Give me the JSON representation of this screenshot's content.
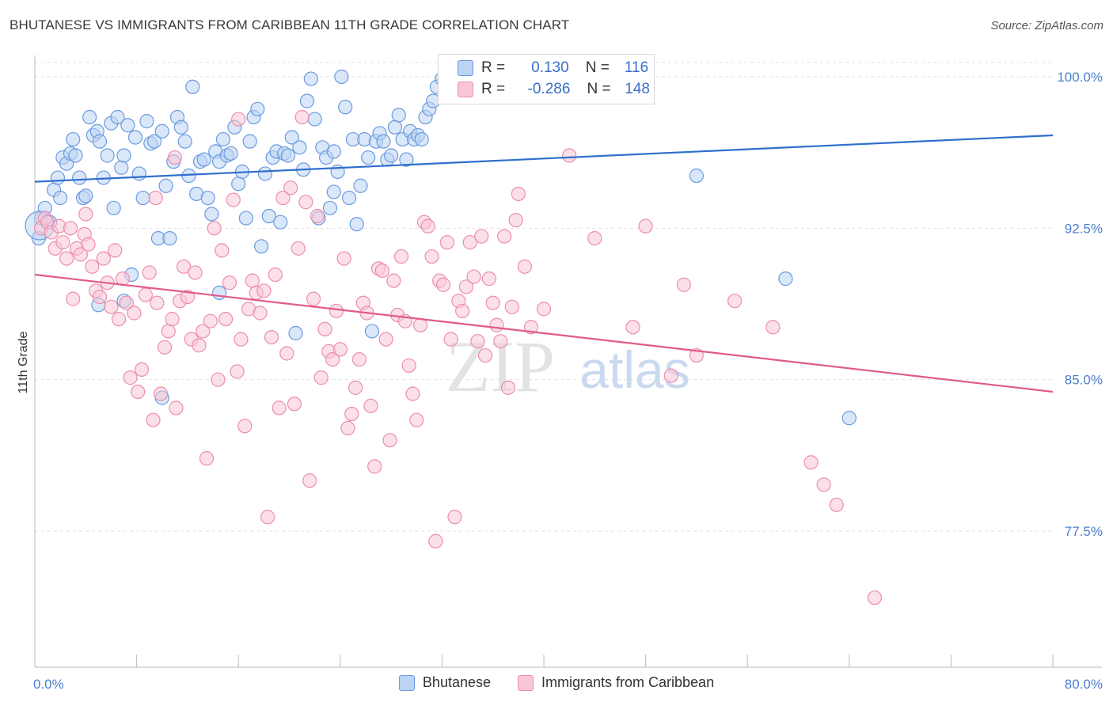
{
  "title": "BHUTANESE VS IMMIGRANTS FROM CARIBBEAN 11TH GRADE CORRELATION CHART",
  "source": "Source: ZipAtlas.com",
  "watermark": {
    "zip": "ZIP",
    "atlas": "atlas"
  },
  "legend_box": {
    "rows": [
      {
        "r_label": "R =",
        "r_value": "0.130",
        "n_label": "N =",
        "n_value": "116"
      },
      {
        "r_label": "R =",
        "r_value": "-0.286",
        "n_label": "N =",
        "n_value": "148"
      }
    ]
  },
  "colors": {
    "blue_fill": "#bcd3f4",
    "blue_stroke": "#6a9be0",
    "blue_line": "#2f6fcc",
    "pink_fill": "#f9c6d6",
    "pink_stroke": "#eb8eaf",
    "pink_line": "#e05a8c",
    "tick_label": "#4a7fd0"
  },
  "chart_data": {
    "type": "scatter",
    "xlabel": "",
    "ylabel": "11th Grade",
    "xlim": [
      0,
      80
    ],
    "ylim": [
      72,
      101.5
    ],
    "x_tick_labels": [
      {
        "value": 0,
        "label": "0.0%"
      },
      {
        "value": 80,
        "label": "80.0%"
      }
    ],
    "y_tick_labels": [
      {
        "value": 100,
        "label": "100.0%"
      },
      {
        "value": 92.5,
        "label": "92.5%"
      },
      {
        "value": 85,
        "label": "85.0%"
      },
      {
        "value": 77.5,
        "label": "77.5%"
      }
    ],
    "grid": "horizontal dashed",
    "legend_position": "bottom",
    "series": [
      {
        "name": "Bhutanese",
        "trend": {
          "x": [
            0,
            80
          ],
          "y": [
            94.8,
            97.1
          ]
        },
        "points": [
          [
            0.5,
            93.0
          ],
          [
            0.8,
            93.5
          ],
          [
            1.2,
            92.8
          ],
          [
            1.5,
            94.4
          ],
          [
            1.8,
            95.0
          ],
          [
            2.0,
            94.0
          ],
          [
            2.2,
            96.0
          ],
          [
            2.5,
            95.7
          ],
          [
            2.8,
            96.2
          ],
          [
            3.0,
            96.9
          ],
          [
            3.2,
            96.1
          ],
          [
            3.5,
            95.0
          ],
          [
            3.8,
            94.0
          ],
          [
            4.0,
            94.1
          ],
          [
            4.3,
            98.0
          ],
          [
            4.6,
            97.1
          ],
          [
            4.9,
            97.3
          ],
          [
            5.1,
            96.8
          ],
          [
            5.4,
            95.0
          ],
          [
            5.7,
            96.1
          ],
          [
            6.0,
            97.7
          ],
          [
            6.2,
            93.5
          ],
          [
            6.5,
            98.0
          ],
          [
            6.8,
            95.5
          ],
          [
            7.0,
            96.1
          ],
          [
            7.3,
            97.6
          ],
          [
            7.6,
            90.2
          ],
          [
            7.9,
            97.0
          ],
          [
            8.2,
            95.2
          ],
          [
            8.5,
            94.0
          ],
          [
            8.8,
            97.8
          ],
          [
            9.1,
            96.7
          ],
          [
            9.4,
            96.8
          ],
          [
            9.7,
            92.0
          ],
          [
            10.0,
            97.3
          ],
          [
            10.3,
            94.6
          ],
          [
            10.6,
            92.0
          ],
          [
            10.9,
            95.8
          ],
          [
            11.2,
            98.0
          ],
          [
            11.5,
            97.5
          ],
          [
            11.8,
            96.8
          ],
          [
            12.1,
            95.1
          ],
          [
            12.4,
            99.5
          ],
          [
            12.7,
            94.2
          ],
          [
            13.0,
            95.8
          ],
          [
            13.3,
            95.9
          ],
          [
            13.6,
            94.0
          ],
          [
            13.9,
            93.2
          ],
          [
            14.2,
            96.3
          ],
          [
            14.5,
            95.8
          ],
          [
            14.8,
            96.9
          ],
          [
            15.1,
            96.1
          ],
          [
            15.4,
            96.2
          ],
          [
            15.7,
            97.5
          ],
          [
            16.0,
            94.7
          ],
          [
            16.3,
            95.3
          ],
          [
            16.6,
            93.0
          ],
          [
            16.9,
            96.8
          ],
          [
            17.2,
            98.0
          ],
          [
            17.5,
            98.4
          ],
          [
            17.8,
            91.6
          ],
          [
            18.1,
            95.2
          ],
          [
            18.4,
            93.1
          ],
          [
            18.7,
            96.0
          ],
          [
            19.0,
            96.3
          ],
          [
            19.3,
            92.8
          ],
          [
            19.6,
            96.2
          ],
          [
            19.9,
            96.1
          ],
          [
            20.2,
            97.0
          ],
          [
            20.5,
            87.3
          ],
          [
            20.8,
            96.5
          ],
          [
            21.1,
            95.4
          ],
          [
            21.4,
            98.8
          ],
          [
            21.7,
            99.9
          ],
          [
            22.0,
            97.9
          ],
          [
            22.3,
            93.0
          ],
          [
            22.6,
            96.5
          ],
          [
            22.9,
            96.0
          ],
          [
            23.2,
            93.5
          ],
          [
            23.5,
            94.3
          ],
          [
            23.8,
            95.3
          ],
          [
            24.1,
            100.0
          ],
          [
            24.4,
            98.5
          ],
          [
            24.7,
            94.0
          ],
          [
            25.0,
            96.9
          ],
          [
            25.3,
            92.7
          ],
          [
            25.6,
            94.6
          ],
          [
            25.9,
            96.9
          ],
          [
            26.2,
            96.0
          ],
          [
            26.5,
            87.4
          ],
          [
            26.8,
            96.8
          ],
          [
            27.1,
            97.2
          ],
          [
            27.4,
            96.8
          ],
          [
            27.7,
            95.9
          ],
          [
            28.0,
            96.1
          ],
          [
            28.3,
            97.5
          ],
          [
            28.6,
            98.1
          ],
          [
            28.9,
            96.9
          ],
          [
            29.2,
            95.9
          ],
          [
            29.5,
            97.3
          ],
          [
            29.8,
            96.9
          ],
          [
            30.1,
            97.1
          ],
          [
            30.4,
            96.9
          ],
          [
            30.7,
            98.0
          ],
          [
            31.0,
            98.4
          ],
          [
            31.3,
            98.8
          ],
          [
            31.6,
            99.5
          ],
          [
            32.0,
            99.9
          ],
          [
            32.5,
            100.0
          ],
          [
            33.0,
            99.8
          ],
          [
            34.0,
            100.0
          ],
          [
            35.0,
            99.9
          ],
          [
            0.3,
            92.0
          ],
          [
            5.0,
            88.7
          ],
          [
            7.0,
            88.9
          ],
          [
            10.0,
            84.1
          ],
          [
            14.5,
            89.3
          ],
          [
            23.5,
            96.3
          ],
          [
            52.0,
            95.1
          ],
          [
            59.0,
            90.0
          ],
          [
            64.0,
            83.1
          ]
        ]
      },
      {
        "name": "Immigrants from Caribbean",
        "trend": {
          "x": [
            0,
            80
          ],
          "y": [
            90.2,
            84.4
          ]
        },
        "points": [
          [
            0.5,
            92.5
          ],
          [
            0.8,
            93.0
          ],
          [
            1.0,
            92.8
          ],
          [
            1.3,
            92.3
          ],
          [
            1.6,
            91.5
          ],
          [
            1.9,
            92.6
          ],
          [
            2.2,
            91.8
          ],
          [
            2.5,
            91.0
          ],
          [
            2.8,
            92.5
          ],
          [
            3.0,
            89.0
          ],
          [
            3.3,
            91.5
          ],
          [
            3.6,
            91.2
          ],
          [
            3.9,
            92.2
          ],
          [
            4.2,
            91.7
          ],
          [
            4.5,
            90.6
          ],
          [
            4.8,
            89.4
          ],
          [
            5.1,
            89.1
          ],
          [
            5.4,
            91.0
          ],
          [
            5.7,
            89.8
          ],
          [
            6.0,
            88.6
          ],
          [
            6.3,
            91.4
          ],
          [
            6.6,
            88.0
          ],
          [
            6.9,
            90.0
          ],
          [
            7.2,
            88.8
          ],
          [
            7.5,
            85.1
          ],
          [
            7.8,
            88.3
          ],
          [
            8.1,
            84.4
          ],
          [
            8.4,
            85.5
          ],
          [
            8.7,
            89.2
          ],
          [
            9.0,
            90.3
          ],
          [
            9.3,
            83.0
          ],
          [
            9.6,
            88.8
          ],
          [
            9.9,
            84.3
          ],
          [
            10.2,
            86.6
          ],
          [
            10.5,
            87.4
          ],
          [
            10.8,
            88.0
          ],
          [
            11.1,
            83.6
          ],
          [
            11.4,
            88.9
          ],
          [
            11.7,
            90.6
          ],
          [
            12.0,
            89.1
          ],
          [
            12.3,
            87.0
          ],
          [
            12.6,
            90.3
          ],
          [
            12.9,
            86.7
          ],
          [
            13.2,
            87.4
          ],
          [
            13.5,
            81.1
          ],
          [
            13.8,
            87.9
          ],
          [
            14.1,
            92.5
          ],
          [
            14.4,
            85.0
          ],
          [
            14.7,
            91.4
          ],
          [
            15.0,
            88.0
          ],
          [
            15.3,
            89.8
          ],
          [
            15.6,
            93.9
          ],
          [
            15.9,
            85.4
          ],
          [
            16.2,
            87.0
          ],
          [
            16.5,
            82.7
          ],
          [
            16.8,
            88.5
          ],
          [
            17.1,
            89.9
          ],
          [
            17.4,
            89.3
          ],
          [
            17.7,
            88.3
          ],
          [
            18.0,
            89.4
          ],
          [
            18.3,
            78.2
          ],
          [
            18.6,
            87.1
          ],
          [
            18.9,
            90.2
          ],
          [
            19.2,
            83.6
          ],
          [
            19.5,
            94.0
          ],
          [
            19.8,
            86.3
          ],
          [
            20.1,
            94.5
          ],
          [
            20.4,
            83.8
          ],
          [
            20.7,
            91.5
          ],
          [
            21.0,
            98.0
          ],
          [
            21.3,
            93.8
          ],
          [
            21.6,
            80.0
          ],
          [
            21.9,
            89.0
          ],
          [
            22.2,
            93.1
          ],
          [
            22.5,
            85.1
          ],
          [
            22.8,
            87.5
          ],
          [
            23.1,
            86.4
          ],
          [
            23.4,
            86.0
          ],
          [
            23.7,
            88.4
          ],
          [
            24.0,
            86.5
          ],
          [
            24.3,
            91.0
          ],
          [
            24.6,
            82.6
          ],
          [
            24.9,
            83.3
          ],
          [
            25.2,
            84.6
          ],
          [
            25.5,
            86.0
          ],
          [
            25.8,
            88.8
          ],
          [
            26.1,
            88.3
          ],
          [
            26.4,
            83.7
          ],
          [
            26.7,
            80.7
          ],
          [
            27.0,
            90.5
          ],
          [
            27.3,
            90.4
          ],
          [
            27.6,
            87.0
          ],
          [
            27.9,
            82.0
          ],
          [
            28.2,
            89.9
          ],
          [
            28.5,
            88.2
          ],
          [
            28.8,
            91.1
          ],
          [
            29.1,
            87.9
          ],
          [
            29.4,
            85.7
          ],
          [
            29.7,
            84.3
          ],
          [
            30.0,
            83.0
          ],
          [
            30.3,
            87.7
          ],
          [
            30.6,
            92.8
          ],
          [
            30.9,
            92.6
          ],
          [
            31.2,
            91.1
          ],
          [
            31.5,
            77.0
          ],
          [
            31.8,
            89.9
          ],
          [
            32.1,
            89.7
          ],
          [
            32.4,
            91.8
          ],
          [
            32.7,
            87.0
          ],
          [
            33.0,
            78.2
          ],
          [
            33.3,
            88.9
          ],
          [
            33.6,
            88.4
          ],
          [
            33.9,
            89.6
          ],
          [
            34.2,
            91.8
          ],
          [
            34.5,
            90.1
          ],
          [
            34.8,
            86.9
          ],
          [
            35.1,
            92.1
          ],
          [
            35.4,
            86.2
          ],
          [
            35.7,
            90.0
          ],
          [
            36.0,
            88.8
          ],
          [
            36.3,
            87.7
          ],
          [
            36.6,
            86.9
          ],
          [
            36.9,
            92.1
          ],
          [
            37.2,
            84.6
          ],
          [
            37.5,
            88.6
          ],
          [
            37.8,
            92.9
          ],
          [
            38.0,
            94.2
          ],
          [
            38.5,
            90.6
          ],
          [
            39.0,
            87.6
          ],
          [
            40.0,
            88.5
          ],
          [
            41.0,
            100.0
          ],
          [
            43.0,
            100.0
          ],
          [
            47.0,
            87.6
          ],
          [
            50.0,
            85.2
          ],
          [
            52.0,
            86.2
          ],
          [
            55.0,
            88.9
          ],
          [
            58.0,
            87.6
          ],
          [
            61.0,
            80.9
          ],
          [
            62.0,
            79.8
          ],
          [
            63.0,
            78.8
          ],
          [
            66.0,
            74.2
          ],
          [
            16.0,
            97.9
          ],
          [
            11.0,
            96.0
          ],
          [
            9.5,
            94.0
          ],
          [
            4.0,
            93.2
          ],
          [
            42.0,
            96.1
          ],
          [
            44.0,
            92.0
          ],
          [
            48.0,
            92.6
          ],
          [
            51.0,
            89.7
          ]
        ]
      }
    ]
  }
}
